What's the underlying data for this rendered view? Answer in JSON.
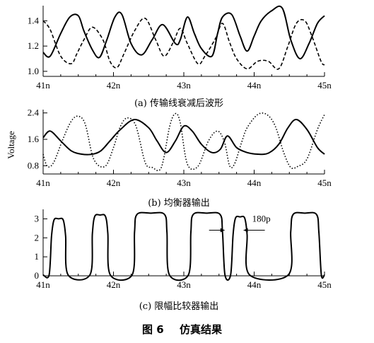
{
  "figure": {
    "caption_number": "图 6",
    "caption_title": "仿真结果"
  },
  "chart_data": [
    {
      "type": "line",
      "caption": "(a) 传输线衰减后波形",
      "x_ticks": [
        "41n",
        "42n",
        "43n",
        "44n",
        "45n"
      ],
      "xlim": [
        41,
        45
      ],
      "y_ticks": [
        "1.0",
        "1.2",
        "1.4"
      ],
      "ylim": [
        0.96,
        1.52
      ],
      "ylabel": "",
      "series": [
        {
          "style": "solid",
          "x": [
            41.0,
            41.1,
            41.25,
            41.38,
            41.5,
            41.58,
            41.7,
            41.8,
            41.9,
            42.02,
            42.12,
            42.25,
            42.4,
            42.55,
            42.7,
            42.88,
            42.95,
            43.05,
            43.15,
            43.25,
            43.4,
            43.48,
            43.55,
            43.68,
            43.8,
            43.9,
            44.0,
            44.1,
            44.25,
            44.4,
            44.52,
            44.65,
            44.78,
            44.9,
            45.0
          ],
          "y": [
            1.15,
            1.12,
            1.3,
            1.43,
            1.44,
            1.32,
            1.17,
            1.11,
            1.24,
            1.43,
            1.45,
            1.22,
            1.13,
            1.25,
            1.37,
            1.22,
            1.25,
            1.43,
            1.3,
            1.18,
            1.12,
            1.3,
            1.43,
            1.45,
            1.28,
            1.16,
            1.28,
            1.4,
            1.48,
            1.5,
            1.25,
            1.1,
            1.22,
            1.38,
            1.44
          ]
        },
        {
          "style": "dashed",
          "x": [
            41.0,
            41.1,
            41.25,
            41.4,
            41.48,
            41.58,
            41.7,
            41.85,
            41.95,
            42.05,
            42.15,
            42.3,
            42.45,
            42.6,
            42.72,
            42.85,
            42.95,
            43.05,
            43.2,
            43.3,
            43.45,
            43.55,
            43.65,
            43.75,
            43.9,
            44.05,
            44.2,
            44.35,
            44.48,
            44.6,
            44.72,
            44.82,
            44.95,
            45.0
          ],
          "y": [
            1.4,
            1.33,
            1.12,
            1.06,
            1.14,
            1.25,
            1.35,
            1.25,
            1.08,
            1.03,
            1.14,
            1.32,
            1.42,
            1.25,
            1.12,
            1.23,
            1.34,
            1.22,
            1.06,
            1.12,
            1.26,
            1.38,
            1.23,
            1.1,
            1.02,
            1.08,
            1.08,
            1.02,
            1.2,
            1.38,
            1.4,
            1.28,
            1.08,
            1.05
          ]
        }
      ]
    },
    {
      "type": "line",
      "caption": "(b) 均衡器输出",
      "x_ticks": [
        "41n",
        "42n",
        "43n",
        "44n",
        "45n"
      ],
      "xlim": [
        41,
        45
      ],
      "y_ticks": [
        "0.8",
        "1.6",
        "2.4"
      ],
      "ylim": [
        0.55,
        2.5
      ],
      "ylabel": "Voltage",
      "series": [
        {
          "style": "solid",
          "x": [
            41.0,
            41.1,
            41.25,
            41.4,
            41.55,
            41.7,
            41.82,
            41.95,
            42.1,
            42.3,
            42.5,
            42.62,
            42.75,
            42.88,
            43.0,
            43.12,
            43.25,
            43.4,
            43.52,
            43.62,
            43.75,
            43.9,
            44.05,
            44.2,
            44.35,
            44.48,
            44.6,
            44.75,
            44.9,
            45.0
          ],
          "y": [
            1.65,
            1.85,
            1.55,
            1.25,
            1.15,
            1.15,
            1.25,
            1.55,
            1.9,
            2.2,
            1.95,
            1.55,
            1.2,
            1.55,
            2.0,
            1.85,
            1.45,
            1.2,
            1.3,
            1.7,
            1.35,
            1.2,
            1.15,
            1.18,
            1.45,
            1.95,
            2.2,
            1.9,
            1.35,
            1.15
          ]
        },
        {
          "style": "dotted",
          "x": [
            41.0,
            41.06,
            41.15,
            41.28,
            41.4,
            41.5,
            41.6,
            41.72,
            41.88,
            42.0,
            42.1,
            42.2,
            42.32,
            42.45,
            42.55,
            42.68,
            42.8,
            42.88,
            42.95,
            43.05,
            43.2,
            43.35,
            43.48,
            43.58,
            43.65,
            43.72,
            43.82,
            43.9,
            44.05,
            44.18,
            44.3,
            44.42,
            44.52,
            44.62,
            44.75,
            44.9,
            45.0
          ],
          "y": [
            1.15,
            0.78,
            0.9,
            1.6,
            2.15,
            2.3,
            2.05,
            1.0,
            0.78,
            1.35,
            2.0,
            2.25,
            2.0,
            0.9,
            0.75,
            0.75,
            2.0,
            2.38,
            2.1,
            0.85,
            0.78,
            1.55,
            1.85,
            1.5,
            0.8,
            0.85,
            1.5,
            1.95,
            2.35,
            2.35,
            2.0,
            1.2,
            0.75,
            0.78,
            1.0,
            1.9,
            2.35
          ]
        }
      ]
    },
    {
      "type": "line",
      "caption": "(c) 限幅比较器输出",
      "x_ticks": [
        "41n",
        "42n",
        "43n",
        "44n",
        "45n"
      ],
      "xlim": [
        41,
        45
      ],
      "y_ticks": [
        "0",
        "1",
        "2",
        "3"
      ],
      "ylim": [
        0,
        3.5
      ],
      "ylabel": "",
      "annotation": {
        "text": "180p",
        "x_from": 43.58,
        "x_to": 43.85,
        "y": 2.4
      },
      "series": [
        {
          "style": "solid",
          "pulses": [
            {
              "start": 41.12,
              "end": 41.32,
              "high": 3.0
            },
            {
              "start": 41.7,
              "end": 41.92,
              "high": 3.2
            },
            {
              "start": 42.3,
              "end": 42.76,
              "high": 3.3
            },
            {
              "start": 43.1,
              "end": 43.55,
              "high": 3.3
            },
            {
              "start": 43.7,
              "end": 43.9,
              "high": 3.1
            },
            {
              "start": 44.52,
              "end": 44.92,
              "high": 3.3
            }
          ],
          "low": 0.05
        }
      ]
    }
  ]
}
